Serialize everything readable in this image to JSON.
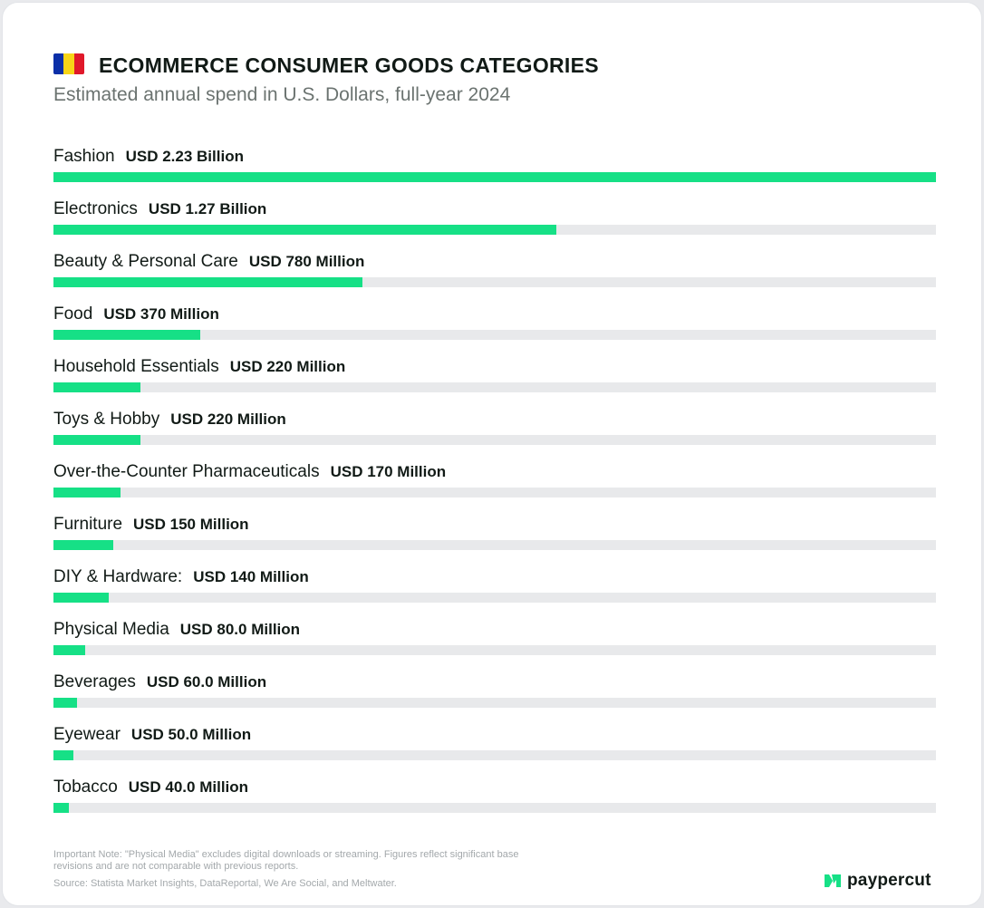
{
  "header": {
    "title": "ECOMMERCE CONSUMER GOODS CATEGORIES",
    "subtitle": "Estimated annual spend in U.S. Dollars, full-year 2024",
    "flag_colors": [
      "#0b2fa8",
      "#f7d417",
      "#e0182a"
    ]
  },
  "colors": {
    "bar": "#16e086",
    "track": "#e8e9eb",
    "text": "#111a16",
    "muted": "#a3a8ab"
  },
  "chart_data": {
    "type": "bar",
    "orientation": "horizontal",
    "categories": [
      "Fashion",
      "Electronics",
      "Beauty & Personal Care",
      "Food",
      "Household Essentials",
      "Toys & Hobby",
      "Over-the-Counter Pharmaceuticals",
      "Furniture",
      "DIY & Hardware:",
      "Physical Media",
      "Beverages",
      "Eyewear",
      "Tobacco"
    ],
    "values": [
      2230,
      1270,
      780,
      370,
      220,
      220,
      170,
      150,
      140,
      80,
      60,
      50,
      40
    ],
    "value_labels": [
      "USD 2.23 Billion",
      "USD 1.27 Billion",
      "USD 780 Million",
      "USD 370 Million",
      "USD 220 Million",
      "USD 220 Million",
      "USD 170 Million",
      "USD 150 Million",
      "USD 140 Million",
      "USD 80.0 Million",
      "USD 60.0 Million",
      "USD 50.0 Million",
      "USD 40.0 Million"
    ],
    "xlim": [
      0,
      2230
    ],
    "grid": false
  },
  "footer": {
    "note": "Important Note: \"Physical Media\" excludes digital downloads or streaming. Figures reflect significant base revisions and are not comparable with previous reports.",
    "source": "Source: Statista Market Insights, DataReportal, We Are Social, and Meltwater.",
    "brand": "paypercut",
    "brand_icon": "paypercut-logo-icon"
  }
}
